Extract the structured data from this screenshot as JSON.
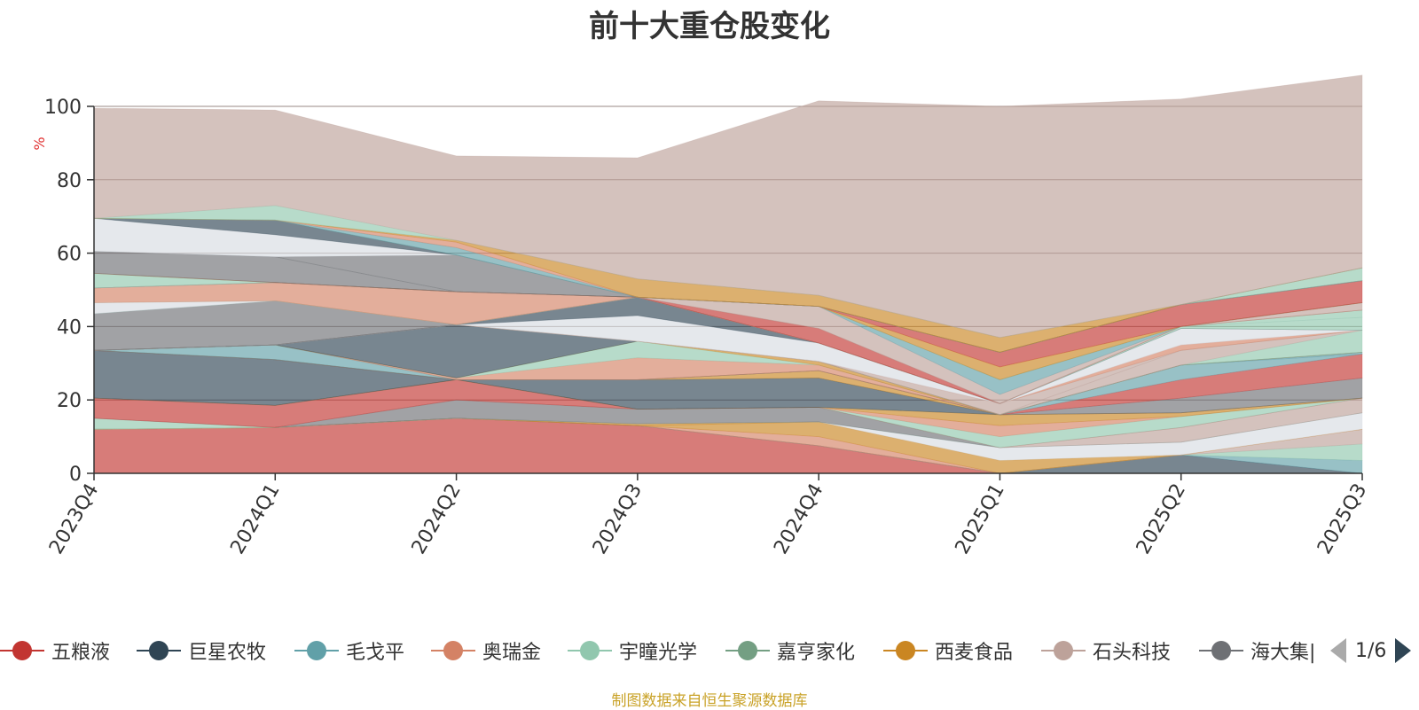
{
  "chart_data": {
    "type": "area",
    "title": "前十大重仓股变化",
    "ylabel": "%",
    "ylim": [
      0,
      100
    ],
    "yticks": [
      0,
      20,
      40,
      60,
      80,
      100
    ],
    "grid": true,
    "stacked": true,
    "categories": [
      "2023Q4",
      "2024Q1",
      "2024Q2",
      "2024Q3",
      "2024Q4",
      "2025Q1",
      "2025Q2",
      "2025Q3"
    ],
    "series": [
      {
        "name": "五粮液",
        "color": "#c23531",
        "values": [
          12,
          12.5,
          15,
          13,
          7.5,
          0,
          0,
          0
        ]
      },
      {
        "name": "",
        "color": "#2f4554",
        "values": [
          0,
          0,
          0,
          0,
          0,
          0,
          5,
          0
        ]
      },
      {
        "name": "",
        "color": "#61a0a8",
        "values": [
          0,
          0,
          0,
          0,
          0,
          0,
          0,
          3.5
        ]
      },
      {
        "name": "",
        "color": "#91c7ae",
        "values": [
          0,
          0,
          0,
          0,
          0,
          0,
          0,
          4.5
        ]
      },
      {
        "name": "",
        "color": "#bda29a",
        "values": [
          0,
          0,
          0,
          0,
          0,
          0,
          0,
          4
        ]
      },
      {
        "name": "",
        "color": "#d48265",
        "values": [
          0,
          0,
          0,
          0,
          2.5,
          0,
          0,
          0
        ]
      },
      {
        "name": "",
        "color": "#ca8622",
        "values": [
          0,
          0,
          0,
          0,
          4,
          3.5,
          0,
          0
        ]
      },
      {
        "name": "",
        "color": "#ca8622",
        "values": [
          0,
          0,
          0,
          0.5,
          0,
          0,
          0,
          0
        ]
      },
      {
        "name": "",
        "color": "#d7dce2",
        "values": [
          0,
          0,
          0,
          0,
          0,
          3.5,
          3.5,
          4.5
        ]
      },
      {
        "name": "",
        "color": "#91c7ae",
        "values": [
          3,
          0,
          0,
          0,
          0,
          0,
          0,
          0
        ]
      },
      {
        "name": "",
        "color": "#6e7074",
        "values": [
          0,
          0,
          5,
          4,
          4,
          0,
          0,
          0
        ]
      },
      {
        "name": "",
        "color": "#bda29a",
        "values": [
          0,
          0,
          0,
          0,
          0,
          0,
          4,
          4
        ]
      },
      {
        "name": "",
        "color": "#c23531",
        "values": [
          5.5,
          6,
          5.5,
          0,
          0,
          0,
          0,
          0
        ]
      },
      {
        "name": "",
        "color": "#91c7ae",
        "values": [
          0,
          0,
          0,
          0,
          0,
          3,
          3,
          0
        ]
      },
      {
        "name": "",
        "color": "#d48265",
        "values": [
          0,
          0,
          0,
          0,
          0,
          3,
          0,
          0
        ]
      },
      {
        "name": "",
        "color": "#ca8622",
        "values": [
          0,
          0,
          0,
          0,
          0,
          3,
          1,
          0
        ]
      },
      {
        "name": "",
        "color": "#2f4554",
        "values": [
          13,
          12.5,
          0,
          8,
          8,
          0,
          0,
          0
        ]
      },
      {
        "name": "",
        "color": "#ca8622",
        "values": [
          0,
          0,
          0,
          0,
          2,
          0,
          0,
          0
        ]
      },
      {
        "name": "",
        "color": "#6e7074",
        "values": [
          0,
          0,
          0,
          0,
          0,
          0,
          4,
          5.5
        ]
      },
      {
        "name": "",
        "color": "#c23531",
        "values": [
          0,
          0,
          0,
          0,
          0,
          0,
          5,
          6.5
        ]
      },
      {
        "name": "",
        "color": "#61a0a8",
        "values": [
          0,
          4,
          0,
          0,
          0,
          0,
          4,
          0
        ]
      },
      {
        "name": "",
        "color": "#61a0a8",
        "values": [
          0,
          0,
          0,
          0,
          0,
          0,
          0,
          0.5
        ]
      },
      {
        "name": "",
        "color": "#d48265",
        "values": [
          0,
          0,
          0.5,
          6,
          1.5,
          0,
          0,
          0
        ]
      },
      {
        "name": "",
        "color": "#91c7ae",
        "values": [
          0,
          0,
          0,
          4.5,
          0,
          0,
          0,
          0
        ]
      },
      {
        "name": "",
        "color": "#ca8622",
        "values": [
          0,
          0,
          0,
          0,
          1,
          0,
          0,
          0
        ]
      },
      {
        "name": "",
        "color": "#2f4554",
        "values": [
          0,
          0,
          14.5,
          0,
          0,
          0,
          0,
          0
        ]
      },
      {
        "name": "",
        "color": "#91c7ae",
        "values": [
          0,
          0,
          0,
          0,
          0,
          0,
          0,
          6
        ]
      },
      {
        "name": "",
        "color": "#bda29a",
        "values": [
          0,
          0,
          0,
          0,
          0,
          0,
          4,
          0
        ]
      },
      {
        "name": "",
        "color": "#bda29a",
        "values": [
          0,
          0,
          0,
          0,
          0,
          3,
          0,
          0
        ]
      },
      {
        "name": "",
        "color": "#d48265",
        "values": [
          0,
          0,
          0,
          0,
          0,
          0,
          1.5,
          0
        ]
      },
      {
        "name": "",
        "color": "#d7dce2",
        "values": [
          0,
          0,
          0,
          7,
          5,
          0,
          0,
          0
        ]
      },
      {
        "name": "",
        "color": "#d7dce2",
        "values": [
          0,
          0,
          0,
          0,
          0,
          0,
          4.5,
          0
        ]
      },
      {
        "name": "",
        "color": "#2f4554",
        "values": [
          0,
          0,
          0,
          5,
          0,
          0,
          0,
          0
        ]
      },
      {
        "name": "",
        "color": "#6e7074",
        "values": [
          10,
          12,
          0,
          0,
          0,
          0,
          0,
          0
        ]
      },
      {
        "name": "",
        "color": "#91c7ae",
        "values": [
          0,
          0,
          0,
          0,
          0,
          0,
          0.5,
          3.5
        ]
      },
      {
        "name": "",
        "color": "#d7dce2",
        "values": [
          3,
          0,
          0,
          0,
          0,
          0,
          0,
          0
        ]
      },
      {
        "name": "",
        "color": "#91c7ae",
        "values": [
          0,
          0,
          0,
          0,
          0,
          0,
          0,
          2
        ]
      },
      {
        "name": "",
        "color": "#d48265",
        "values": [
          4,
          5,
          9,
          0,
          0,
          0,
          0,
          0
        ]
      },
      {
        "name": "",
        "color": "#c23531",
        "values": [
          0,
          0,
          0,
          0,
          4,
          0,
          0,
          0
        ]
      },
      {
        "name": "",
        "color": "#bda29a",
        "values": [
          0,
          0,
          0,
          0,
          0,
          0,
          0,
          2
        ]
      },
      {
        "name": "",
        "color": "#bda29a",
        "values": [
          0,
          0,
          0,
          0,
          6,
          2.5,
          0,
          0
        ]
      },
      {
        "name": "",
        "color": "#61a0a8",
        "values": [
          0,
          0,
          0,
          0,
          0,
          4,
          0,
          0
        ]
      },
      {
        "name": "",
        "color": "#91c7ae",
        "values": [
          4,
          0,
          0,
          0,
          0,
          0,
          0,
          0
        ]
      },
      {
        "name": "",
        "color": "#ca8622",
        "values": [
          0,
          0,
          0,
          0,
          0,
          3.5,
          0,
          0
        ]
      },
      {
        "name": "",
        "color": "#c23531",
        "values": [
          0,
          0,
          0,
          0,
          0,
          4,
          6,
          6
        ]
      },
      {
        "name": "",
        "color": "#6e7074",
        "values": [
          6,
          7,
          0,
          0,
          0,
          0,
          0,
          0
        ]
      },
      {
        "name": "",
        "color": "#6e7074",
        "values": [
          0,
          0,
          10,
          0,
          0,
          0,
          0,
          0
        ]
      },
      {
        "name": "",
        "color": "#d7dce2",
        "values": [
          9,
          6,
          0,
          0,
          0,
          0,
          0,
          0
        ]
      },
      {
        "name": "",
        "color": "#2f4554",
        "values": [
          0,
          4,
          0,
          0,
          0,
          0,
          0,
          0
        ]
      },
      {
        "name": "",
        "color": "#91c7ae",
        "values": [
          0,
          0,
          0,
          0,
          0,
          0,
          0,
          3.5
        ]
      },
      {
        "name": "",
        "color": "#61a0a8",
        "values": [
          0,
          0,
          2,
          0,
          0,
          0,
          0,
          0
        ]
      },
      {
        "name": "",
        "color": "#d48265",
        "values": [
          0,
          0,
          1.5,
          0,
          0,
          0,
          0,
          0
        ]
      },
      {
        "name": "",
        "color": "#ca8622",
        "values": [
          0,
          0,
          0.5,
          5,
          3,
          4,
          0,
          0
        ]
      },
      {
        "name": "",
        "color": "#91c7ae",
        "values": [
          0,
          4,
          0,
          0,
          0,
          0,
          0,
          0
        ]
      },
      {
        "name": "",
        "color": "#bda29a",
        "values": [
          30,
          26,
          23,
          33,
          53,
          63,
          56,
          52.5
        ]
      }
    ]
  },
  "legend": {
    "items": [
      {
        "label": "五粮液",
        "color": "#c23531"
      },
      {
        "label": "巨星农牧",
        "color": "#2f4554"
      },
      {
        "label": "毛戈平",
        "color": "#61a0a8"
      },
      {
        "label": "奥瑞金",
        "color": "#d48265"
      },
      {
        "label": "宇瞳光学",
        "color": "#91c7ae"
      },
      {
        "label": "嘉亨家化",
        "color": "#749f83"
      },
      {
        "label": "西麦食品",
        "color": "#ca8622"
      },
      {
        "label": "石头科技",
        "color": "#bda29a"
      },
      {
        "label": "海大集|",
        "color": "#6e7074"
      }
    ],
    "page": "1/6"
  },
  "source_note": "制图数据来自恒生聚源数据库"
}
